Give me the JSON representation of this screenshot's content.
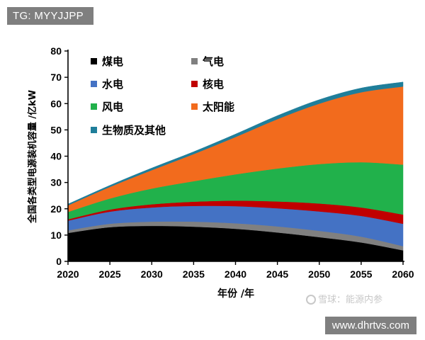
{
  "overlay": {
    "tag": "TG: MYYJJPP",
    "url": "www.dhrtvs.com",
    "watermark": "雪球：能源内参"
  },
  "chart_data": {
    "type": "area",
    "stacked": true,
    "title": "",
    "xlabel": "年份 /年",
    "ylabel": "全国各类型电源装机容量 /亿kW",
    "x": [
      2020,
      2025,
      2030,
      2035,
      2040,
      2045,
      2050,
      2055,
      2060
    ],
    "xticks": [
      "2020",
      "2025",
      "2030",
      "2035",
      "2040",
      "2045",
      "2050",
      "2055",
      "2060"
    ],
    "ylim": [
      0,
      80
    ],
    "yticks": [
      "0",
      "10",
      "20",
      "30",
      "40",
      "50",
      "60",
      "70",
      "80"
    ],
    "legend_position": "top-left",
    "series": [
      {
        "name": "煤电",
        "color": "#000000",
        "values": [
          10.8,
          13.0,
          13.5,
          13.2,
          12.4,
          11.0,
          9.2,
          7.2,
          4.2
        ]
      },
      {
        "name": "气电",
        "color": "#808080",
        "values": [
          1.0,
          1.3,
          1.6,
          1.9,
          2.1,
          2.3,
          2.4,
          2.2,
          1.6
        ]
      },
      {
        "name": "水电",
        "color": "#4472C4",
        "values": [
          3.7,
          4.6,
          5.4,
          6.0,
          6.5,
          6.9,
          7.4,
          7.9,
          8.5
        ]
      },
      {
        "name": "核电",
        "color": "#C00000",
        "values": [
          0.5,
          0.8,
          1.2,
          1.6,
          2.1,
          2.6,
          3.0,
          3.2,
          3.5
        ]
      },
      {
        "name": "风电",
        "color": "#21B14B",
        "values": [
          2.8,
          4.2,
          6.0,
          7.8,
          10.0,
          12.5,
          15.0,
          17.2,
          19.0
        ]
      },
      {
        "name": "太阳能",
        "color": "#F26B1D",
        "values": [
          2.5,
          4.4,
          7.0,
          10.3,
          14.2,
          18.8,
          23.0,
          26.6,
          29.7
        ]
      },
      {
        "name": "生物质及其他",
        "color": "#1F7E9A",
        "values": [
          0.5,
          0.6,
          0.8,
          0.9,
          1.1,
          1.3,
          1.5,
          1.6,
          1.7
        ]
      }
    ]
  }
}
